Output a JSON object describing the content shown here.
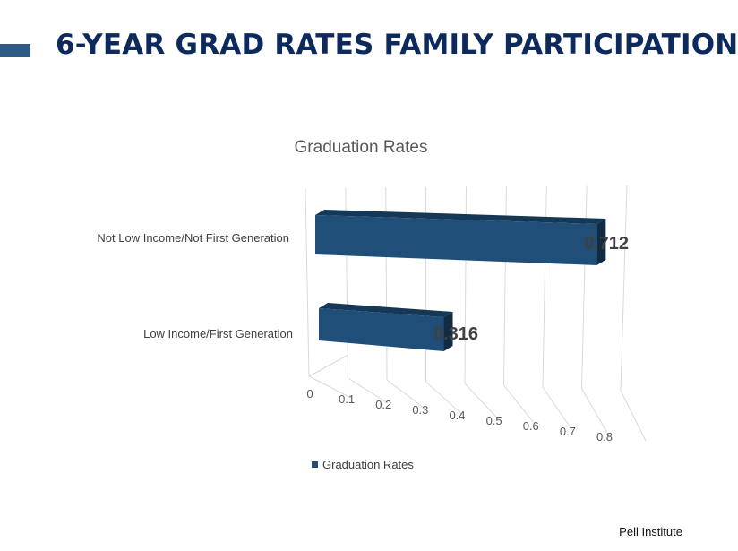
{
  "slide": {
    "title": "6-YEAR GRAD RATES FAMILY PARTICIPATION",
    "source": "Pell Institute",
    "accent_color": "#2e5a86",
    "title_color": "#0d2a5c"
  },
  "chart_data": {
    "type": "bar",
    "orientation": "horizontal",
    "style": "3d",
    "title": "Graduation Rates",
    "categories": [
      "Not Low Income/Not First Generation",
      "Low Income/First Generation"
    ],
    "series": [
      {
        "name": "Graduation Rates",
        "values": [
          0.712,
          0.316
        ],
        "color": "#1f4e79"
      }
    ],
    "data_labels": [
      "0.712",
      "0.316"
    ],
    "x_ticks": [
      "0",
      "0.1",
      "0.2",
      "0.3",
      "0.4",
      "0.5",
      "0.6",
      "0.7",
      "0.8"
    ],
    "xlim": [
      0,
      0.8
    ],
    "grid": true,
    "legend": "bottom-left"
  }
}
